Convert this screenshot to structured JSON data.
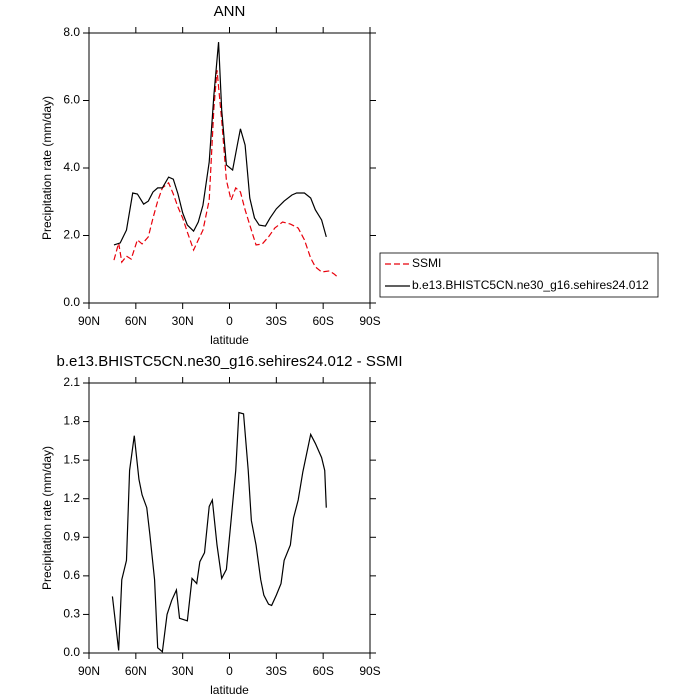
{
  "chart_data": [
    {
      "type": "line",
      "title": "ANN",
      "xlabel": "latitude",
      "ylabel": "Precipitation rate (mm/day)",
      "xlim": [
        90,
        -90
      ],
      "ylim": [
        0,
        8
      ],
      "xticks": [
        {
          "value": 90,
          "label": "90N"
        },
        {
          "value": 60,
          "label": "60N"
        },
        {
          "value": 30,
          "label": "30N"
        },
        0,
        {
          "value": -30,
          "label": "30S"
        },
        {
          "value": -60,
          "label": "60S"
        },
        {
          "value": -90,
          "label": "90S"
        }
      ],
      "yticks": [
        {
          "value": 0,
          "label": "0.0"
        },
        {
          "value": 2,
          "label": "2.0"
        },
        {
          "value": 4,
          "label": "4.0"
        },
        {
          "value": 6,
          "label": "6.0"
        },
        {
          "value": 8,
          "label": "8.0"
        }
      ],
      "legend": "right",
      "series": [
        {
          "name": "SSMI",
          "color": "#e8000b",
          "dashed": true,
          "x": [
            74,
            71,
            69,
            66,
            63,
            59,
            56,
            52,
            49,
            46,
            43,
            39,
            36,
            33,
            30,
            27,
            23,
            20,
            17,
            13,
            10,
            8,
            5,
            2,
            -1,
            -4,
            -7,
            -10,
            -14,
            -17,
            -21,
            -25,
            -29,
            -34,
            -39,
            -44,
            -48,
            -52,
            -55,
            -59,
            -64,
            -67,
            -70
          ],
          "values": [
            1.27,
            1.78,
            1.21,
            1.39,
            1.3,
            1.87,
            1.75,
            1.96,
            2.52,
            3.02,
            3.41,
            3.56,
            3.23,
            2.84,
            2.52,
            2.1,
            1.57,
            1.87,
            2.16,
            3.05,
            5.78,
            6.9,
            5.42,
            3.64,
            3.05,
            3.41,
            3.29,
            2.76,
            2.16,
            1.72,
            1.75,
            1.96,
            2.22,
            2.4,
            2.34,
            2.22,
            1.87,
            1.33,
            1.07,
            0.92,
            0.95,
            0.86,
            0.74
          ]
        },
        {
          "name": "b.e13.BHISTC5CN.ne30_g16.sehires24.012",
          "color": "#000000",
          "dashed": false,
          "x": [
            74,
            70,
            66,
            62,
            59,
            55,
            52,
            49,
            46,
            43,
            39,
            36,
            33,
            30,
            27,
            23,
            20,
            17,
            13,
            10,
            7,
            5,
            2,
            -2,
            -5,
            -7,
            -10,
            -13,
            -16,
            -19,
            -23,
            -26,
            -30,
            -35,
            -40,
            -43,
            -48,
            -52,
            -55,
            -59,
            -62
          ],
          "values": [
            1.72,
            1.78,
            2.16,
            3.26,
            3.23,
            2.93,
            3.02,
            3.29,
            3.41,
            3.41,
            3.73,
            3.67,
            3.23,
            2.67,
            2.31,
            2.13,
            2.4,
            2.9,
            4.18,
            6.16,
            7.73,
            5.72,
            4.09,
            3.94,
            4.68,
            5.16,
            4.68,
            3.11,
            2.52,
            2.31,
            2.28,
            2.52,
            2.79,
            3.02,
            3.2,
            3.26,
            3.26,
            3.11,
            2.76,
            2.46,
            1.96
          ]
        }
      ]
    },
    {
      "type": "line",
      "title": "b.e13.BHISTC5CN.ne30_g16.sehires24.012 - SSMI",
      "xlabel": "latitude",
      "ylabel": "Precipitation rate (mm/day)",
      "xlim": [
        90,
        -90
      ],
      "ylim": [
        0,
        2.1
      ],
      "xticks": [
        {
          "value": 90,
          "label": "90N"
        },
        {
          "value": 60,
          "label": "60N"
        },
        {
          "value": 30,
          "label": "30N"
        },
        0,
        {
          "value": -30,
          "label": "30S"
        },
        {
          "value": -60,
          "label": "60S"
        },
        {
          "value": -90,
          "label": "90S"
        }
      ],
      "yticks": [
        {
          "value": 0,
          "label": "0.0"
        },
        {
          "value": 0.3,
          "label": "0.3"
        },
        {
          "value": 0.6,
          "label": "0.6"
        },
        {
          "value": 0.9,
          "label": "0.9"
        },
        {
          "value": 1.2,
          "label": "1.2"
        },
        {
          "value": 1.5,
          "label": "1.5"
        },
        {
          "value": 1.8,
          "label": "1.8"
        },
        {
          "value": 2.1,
          "label": "2.1"
        }
      ],
      "series": [
        {
          "color": "#000000",
          "dashed": false,
          "x": [
            75,
            71,
            69,
            66,
            64,
            61,
            58,
            56,
            53,
            51,
            48,
            46,
            43,
            40,
            37,
            34,
            32,
            27,
            24,
            21,
            19,
            16,
            13,
            11,
            8,
            5,
            2,
            -1,
            -4,
            -6,
            -9,
            -12,
            -14,
            -17,
            -20,
            -22,
            -25,
            -27,
            -30,
            -33,
            -35,
            -39,
            -41,
            -44,
            -47,
            -52,
            -55,
            -59,
            -61,
            -62
          ],
          "values": [
            0.44,
            0.02,
            0.57,
            0.72,
            1.42,
            1.69,
            1.35,
            1.23,
            1.13,
            0.92,
            0.57,
            0.04,
            0.01,
            0.3,
            0.41,
            0.49,
            0.27,
            0.25,
            0.58,
            0.54,
            0.71,
            0.78,
            1.14,
            1.19,
            0.84,
            0.58,
            0.65,
            1.03,
            1.42,
            1.87,
            1.86,
            1.42,
            1.03,
            0.84,
            0.57,
            0.45,
            0.38,
            0.37,
            0.45,
            0.54,
            0.72,
            0.84,
            1.05,
            1.19,
            1.41,
            1.7,
            1.63,
            1.52,
            1.42,
            1.13
          ]
        }
      ]
    }
  ]
}
